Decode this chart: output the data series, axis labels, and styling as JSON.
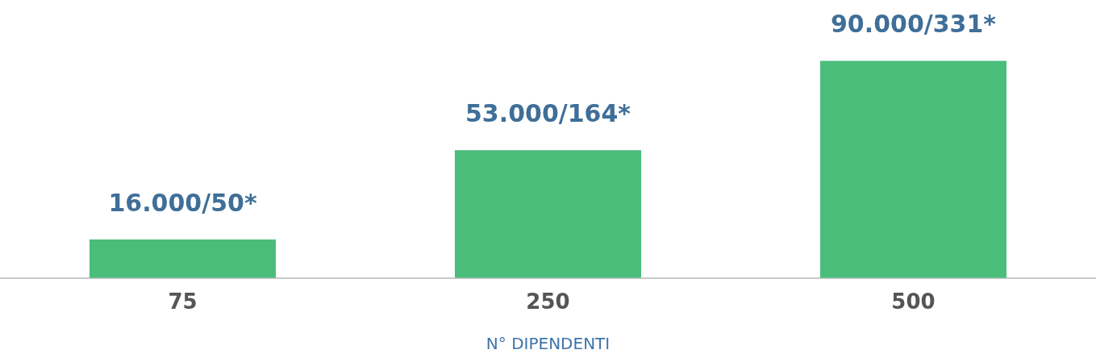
{
  "chart_data": {
    "type": "bar",
    "xlabel": "N° DIPENDENTI",
    "categories": [
      "75",
      "250",
      "500"
    ],
    "values": [
      16000,
      53000,
      90000
    ],
    "color": "#4bbd7a",
    "value_labels": [
      "16.000/50*",
      "53.000/164*",
      "90.000/331*"
    ],
    "tick_labels": "x",
    "grid": false,
    "legend": false
  }
}
